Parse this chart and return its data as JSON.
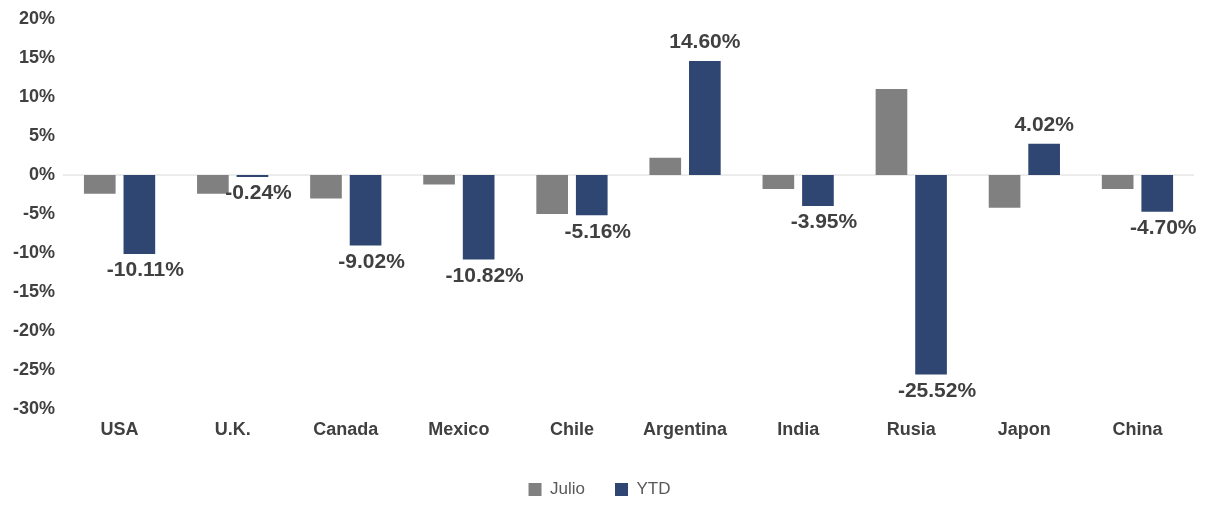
{
  "chart_data": {
    "type": "bar",
    "categories": [
      "USA",
      "U.K.",
      "Canada",
      "Mexico",
      "Chile",
      "Argentina",
      "India",
      "Rusia",
      "Japon",
      "China"
    ],
    "series": [
      {
        "name": "Julio",
        "color": "#808080",
        "values": [
          -2.4,
          -2.4,
          -3.0,
          -1.2,
          -5.0,
          2.2,
          -1.8,
          11.0,
          -4.2,
          -1.8
        ]
      },
      {
        "name": "YTD",
        "color": "#2f4672",
        "values": [
          -10.11,
          -0.24,
          -9.02,
          -10.82,
          -5.16,
          14.6,
          -3.95,
          -25.52,
          4.02,
          -4.7
        ],
        "value_labels": [
          "-10.11%",
          "-0.24%",
          "-9.02%",
          "-10.82%",
          "-5.16%",
          "14.60%",
          "-3.95%",
          "-25.52%",
          "4.02%",
          "-4.70%"
        ]
      }
    ],
    "ylim": [
      -30,
      20
    ],
    "yticks": [
      {
        "value": 20,
        "label": "20%"
      },
      {
        "value": 15,
        "label": "15%"
      },
      {
        "value": 10,
        "label": "10%"
      },
      {
        "value": 5,
        "label": "5%"
      },
      {
        "value": 0,
        "label": "0%"
      },
      {
        "value": -5,
        "label": "-5%"
      },
      {
        "value": -10,
        "label": "-10%"
      },
      {
        "value": -15,
        "label": "-15%"
      },
      {
        "value": -20,
        "label": "-20%"
      },
      {
        "value": -25,
        "label": "-25%"
      },
      {
        "value": -30,
        "label": "-30%"
      }
    ],
    "ref_lines": [
      {
        "axis": "y",
        "value": 0,
        "color": "#d9d9d9"
      }
    ],
    "grid": false,
    "legend": "bottom"
  }
}
